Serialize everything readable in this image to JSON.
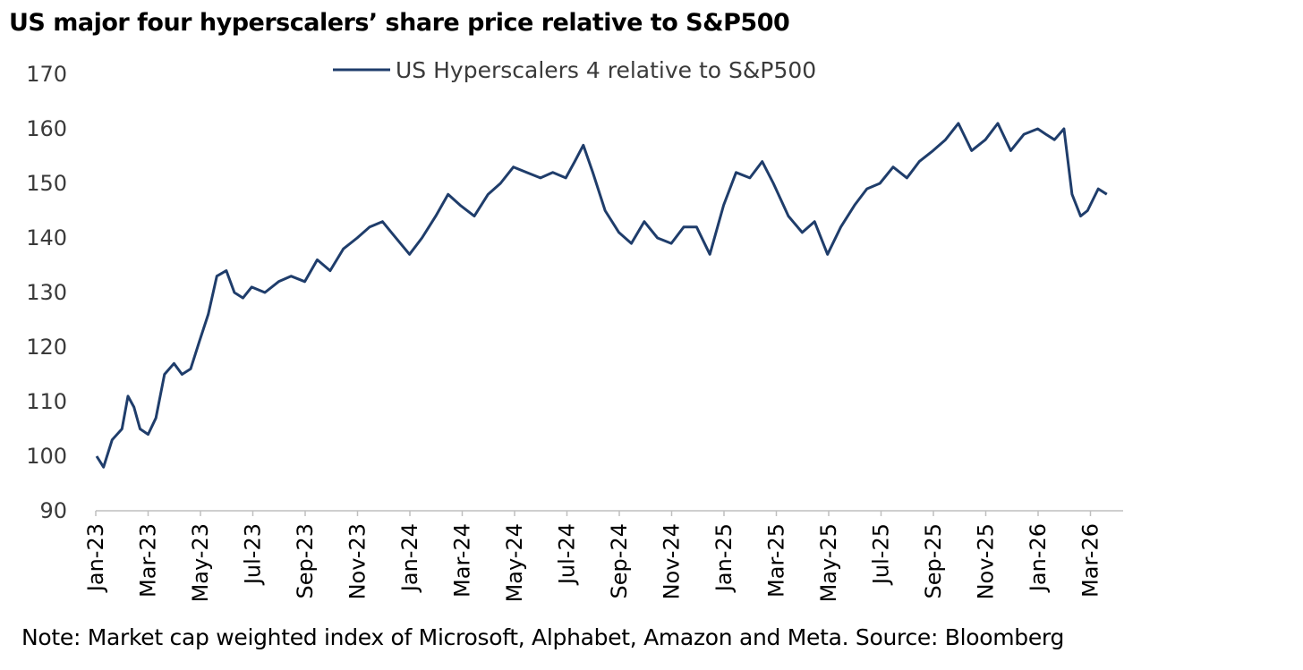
{
  "chart_data": {
    "type": "line",
    "title": "US major four hyperscalers’ share price relative to S&P500",
    "note": "Note: Market cap weighted index of Microsoft, Alphabet, Amazon and Meta. Source: Bloomberg",
    "xlabel": "",
    "ylabel": "",
    "ylim": [
      90,
      170
    ],
    "yticks": [
      90,
      100,
      110,
      120,
      130,
      140,
      150,
      160,
      170
    ],
    "xticks": [
      "Jan-23",
      "Mar-23",
      "May-23",
      "Jul-23",
      "Sep-23",
      "Nov-23",
      "Jan-24",
      "Mar-24",
      "May-24",
      "Jul-24",
      "Sep-24",
      "Nov-24",
      "Jan-25",
      "Mar-25",
      "May-25",
      "Jul-25",
      "Sep-25",
      "Nov-25",
      "Jan-26",
      "Mar-26"
    ],
    "legend": "top-center",
    "grid": false,
    "line_color": "#1f3d6b",
    "series": [
      {
        "name": "US Hyperscalers 4 relative to S&P500",
        "x": [
          "2023-01-02",
          "2023-01-10",
          "2023-01-20",
          "2023-02-01",
          "2023-02-08",
          "2023-02-15",
          "2023-02-22",
          "2023-03-01",
          "2023-03-10",
          "2023-03-20",
          "2023-03-31",
          "2023-04-10",
          "2023-04-20",
          "2023-04-30",
          "2023-05-10",
          "2023-05-20",
          "2023-05-31",
          "2023-06-10",
          "2023-06-20",
          "2023-06-30",
          "2023-07-15",
          "2023-07-31",
          "2023-08-15",
          "2023-08-31",
          "2023-09-15",
          "2023-09-30",
          "2023-10-15",
          "2023-10-31",
          "2023-11-15",
          "2023-11-30",
          "2023-12-10",
          "2023-12-31",
          "2024-01-15",
          "2024-01-31",
          "2024-02-15",
          "2024-02-29",
          "2024-03-15",
          "2024-03-31",
          "2024-04-15",
          "2024-04-30",
          "2024-05-15",
          "2024-05-31",
          "2024-06-15",
          "2024-06-30",
          "2024-07-10",
          "2024-07-20",
          "2024-07-31",
          "2024-08-15",
          "2024-08-31",
          "2024-09-15",
          "2024-09-30",
          "2024-10-15",
          "2024-10-31",
          "2024-11-15",
          "2024-11-30",
          "2024-12-15",
          "2024-12-31",
          "2025-01-15",
          "2025-01-31",
          "2025-02-15",
          "2025-02-28",
          "2025-03-15",
          "2025-03-31",
          "2025-04-15",
          "2025-04-30",
          "2025-05-15",
          "2025-05-31",
          "2025-06-15",
          "2025-06-30",
          "2025-07-15",
          "2025-07-31",
          "2025-08-15",
          "2025-08-31",
          "2025-09-15",
          "2025-09-30",
          "2025-10-15",
          "2025-10-31",
          "2025-11-15",
          "2025-11-30",
          "2025-12-15",
          "2025-12-31",
          "2026-01-10",
          "2026-01-20",
          "2026-01-31",
          "2026-02-10",
          "2026-02-20",
          "2026-02-28",
          "2026-03-10",
          "2026-03-20"
        ],
        "values": [
          100,
          98,
          103,
          105,
          111,
          109,
          105,
          104,
          107,
          115,
          117,
          115,
          116,
          121,
          126,
          133,
          134,
          130,
          129,
          131,
          130,
          132,
          133,
          132,
          136,
          134,
          138,
          140,
          142,
          143,
          141,
          137,
          140,
          144,
          148,
          146,
          144,
          148,
          150,
          153,
          152,
          151,
          152,
          151,
          154,
          157,
          152,
          145,
          141,
          139,
          143,
          140,
          139,
          142,
          142,
          137,
          146,
          152,
          151,
          154,
          150,
          144,
          141,
          143,
          137,
          142,
          146,
          149,
          150,
          153,
          151,
          154,
          156,
          158,
          161,
          156,
          158,
          161,
          156,
          159,
          160,
          159,
          158,
          160,
          148,
          144,
          145,
          149,
          148
        ]
      }
    ]
  }
}
